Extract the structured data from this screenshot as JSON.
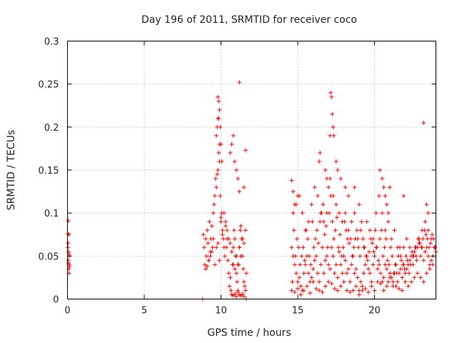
{
  "chart_data": {
    "type": "scatter",
    "title": "Day 196 of 2011, SRMTID for receiver coco",
    "xlabel": "GPS time / hours",
    "ylabel": "SRMTID / TECUs",
    "xlim": [
      0,
      24
    ],
    "ylim": [
      0,
      0.3
    ],
    "xticks": [
      0,
      5,
      10,
      15,
      20
    ],
    "xtick_labels": [
      "0",
      "5",
      "10",
      "15",
      "20"
    ],
    "yticks": [
      0,
      0.05,
      0.1,
      0.15,
      0.2,
      0.25,
      0.3
    ],
    "ytick_labels": [
      "0",
      "0.05",
      "0.1",
      "0.15",
      "0.2",
      "0.25",
      "0.3"
    ],
    "grid": true,
    "marker": "+",
    "color": "#ff0000",
    "series": [
      {
        "x": [
          0.02,
          0.04,
          0.06,
          0.08,
          0.1,
          0.12,
          0.05,
          0.09,
          0.03,
          0.11,
          0.07,
          0.13,
          0.06,
          0.1,
          8.85,
          8.9,
          8.95,
          9.0,
          9.05,
          9.1,
          9.15,
          9.2,
          9.25,
          9.3,
          9.35,
          9.4,
          9.45,
          9.5,
          9.55,
          9.6,
          9.65,
          9.7,
          9.75,
          9.8,
          9.85,
          9.9,
          9.95,
          10.0,
          10.05,
          10.1,
          10.15,
          10.2,
          10.25,
          10.3,
          10.35,
          10.4,
          10.45,
          10.5,
          10.55,
          10.6,
          10.65,
          10.7,
          10.75,
          10.8,
          10.85,
          10.9,
          10.95,
          11.0,
          11.05,
          11.1,
          11.15,
          11.2,
          11.25,
          11.3,
          11.35,
          11.4,
          11.45,
          11.5,
          11.55,
          11.6,
          11.65,
          9.7,
          9.75,
          9.8,
          9.85,
          9.9,
          9.95,
          10.0,
          10.05,
          9.8,
          9.85,
          9.9,
          10.6,
          10.7,
          10.8,
          10.9,
          11.0,
          11.1,
          11.2,
          11.6,
          11.2,
          11.5,
          9.0,
          9.2,
          9.4,
          9.6,
          9.8,
          10.0,
          10.2,
          10.4,
          10.6,
          10.8,
          11.0,
          11.2,
          11.4,
          11.6,
          9.1,
          9.3,
          9.5,
          9.7,
          9.9,
          10.1,
          10.3,
          10.5,
          10.7,
          10.9,
          11.1,
          11.3,
          11.5,
          10.7,
          10.8,
          10.9,
          11.0,
          11.1,
          11.2,
          11.3,
          11.4,
          11.5,
          8.8,
          11.65,
          14.6,
          14.7,
          14.8,
          14.9,
          15.0,
          15.1,
          15.2,
          15.3,
          15.4,
          15.5,
          15.6,
          15.7,
          15.8,
          15.9,
          16.0,
          16.1,
          16.2,
          16.3,
          16.4,
          16.5,
          16.6,
          16.7,
          16.8,
          16.9,
          17.0,
          17.1,
          17.2,
          17.3,
          17.4,
          17.5,
          17.6,
          17.7,
          17.8,
          17.9,
          18.0,
          18.1,
          18.2,
          18.3,
          18.4,
          18.5,
          18.6,
          18.7,
          18.8,
          18.9,
          19.0,
          19.1,
          19.2,
          19.3,
          19.4,
          19.5,
          19.6,
          19.7,
          19.8,
          19.9,
          20.0,
          20.1,
          20.2,
          20.3,
          20.4,
          20.5,
          20.6,
          20.7,
          20.8,
          20.9,
          21.0,
          21.1,
          21.2,
          21.3,
          21.4,
          21.5,
          21.6,
          21.7,
          21.8,
          21.9,
          22.0,
          22.1,
          22.2,
          22.3,
          22.4,
          22.5,
          22.6,
          22.7,
          22.8,
          22.9,
          23.0,
          23.1,
          23.2,
          23.3,
          23.4,
          23.5,
          23.6,
          23.7,
          23.8,
          23.9,
          24.0,
          14.65,
          14.75,
          14.85,
          14.95,
          15.05,
          15.15,
          15.25,
          15.35,
          15.45,
          15.55,
          15.65,
          15.75,
          15.85,
          15.95,
          16.05,
          16.15,
          16.25,
          16.35,
          16.45,
          16.55,
          16.65,
          16.75,
          16.85,
          16.95,
          17.05,
          17.15,
          17.25,
          17.35,
          17.45,
          17.55,
          17.65,
          17.75,
          17.85,
          17.95,
          18.05,
          18.15,
          18.25,
          18.35,
          18.45,
          18.55,
          18.65,
          18.75,
          18.85,
          18.95,
          19.05,
          19.15,
          19.25,
          19.35,
          19.45,
          19.55,
          19.65,
          19.75,
          19.85,
          19.95,
          20.05,
          20.15,
          20.25,
          20.35,
          20.45,
          20.55,
          20.65,
          20.75,
          20.85,
          20.95,
          21.05,
          21.15,
          21.25,
          21.35,
          21.45,
          21.55,
          21.65,
          21.75,
          21.85,
          21.95,
          22.05,
          22.15,
          22.25,
          22.35,
          22.45,
          22.55,
          22.65,
          22.75,
          22.85,
          22.95,
          23.05,
          23.15,
          23.25,
          23.35,
          23.45,
          23.55,
          23.65,
          23.75,
          23.85,
          23.95,
          14.7,
          14.9,
          15.1,
          15.3,
          15.5,
          15.7,
          15.9,
          16.1,
          16.3,
          16.5,
          16.7,
          16.9,
          17.1,
          17.3,
          17.5,
          17.7,
          17.9,
          18.1,
          18.3,
          18.5,
          18.7,
          18.9,
          19.1,
          19.3,
          19.5,
          19.7,
          19.9,
          20.1,
          20.3,
          20.5,
          20.7,
          20.9,
          21.1,
          21.3,
          21.5,
          21.7,
          21.9,
          22.1,
          22.3,
          22.5,
          22.7,
          22.9,
          23.1,
          23.3,
          23.5,
          23.7,
          23.9,
          16.4,
          16.45,
          16.8,
          16.9,
          17.0,
          17.1,
          17.15,
          17.2,
          17.25,
          17.3,
          17.35,
          17.5,
          17.6,
          17.8,
          18.1,
          18.3,
          18.7,
          19.0,
          20.35,
          20.5,
          20.6,
          20.7,
          20.8,
          20.9,
          21.0,
          21.9,
          23.2,
          23.4,
          23.5,
          14.6,
          14.7,
          14.8,
          15.0,
          14.6,
          14.8,
          15.0,
          15.2,
          15.4,
          15.6,
          15.8,
          16.0,
          16.2,
          16.4,
          16.6,
          16.8,
          17.0,
          17.2,
          17.4,
          17.6,
          17.8,
          18.0,
          18.2,
          18.4,
          18.6,
          18.8,
          19.0,
          19.2,
          19.4,
          19.6,
          19.8,
          20.0,
          20.2,
          20.4,
          20.6,
          20.8,
          21.0,
          21.2,
          21.4,
          21.6,
          21.8,
          22.0,
          22.2,
          22.4,
          22.6,
          22.8,
          23.0,
          23.2,
          23.4,
          23.6,
          23.8
        ],
        "y": [
          0.076,
          0.065,
          0.045,
          0.035,
          0.03,
          0.05,
          0.091,
          0.075,
          0.06,
          0.04,
          0.055,
          0.038,
          0.042,
          0.052,
          0.075,
          0.06,
          0.04,
          0.07,
          0.05,
          0.08,
          0.065,
          0.045,
          0.09,
          0.055,
          0.07,
          0.085,
          0.06,
          0.1,
          0.11,
          0.12,
          0.14,
          0.13,
          0.145,
          0.15,
          0.17,
          0.18,
          0.12,
          0.095,
          0.1,
          0.08,
          0.07,
          0.06,
          0.05,
          0.085,
          0.06,
          0.07,
          0.045,
          0.03,
          0.015,
          0.025,
          0.01,
          0.005,
          0.04,
          0.06,
          0.08,
          0.07,
          0.05,
          0.03,
          0.02,
          0.01,
          0.04,
          0.06,
          0.08,
          0.085,
          0.07,
          0.05,
          0.035,
          0.02,
          0.015,
          0.01,
          0.03,
          0.19,
          0.2,
          0.21,
          0.23,
          0.22,
          0.2,
          0.18,
          0.16,
          0.235,
          0.21,
          0.16,
          0.17,
          0.18,
          0.19,
          0.16,
          0.15,
          0.14,
          0.252,
          0.173,
          0.125,
          0.13,
          0.035,
          0.045,
          0.055,
          0.04,
          0.065,
          0.09,
          0.1,
          0.08,
          0.065,
          0.04,
          0.05,
          0.06,
          0.07,
          0.08,
          0.038,
          0.05,
          0.07,
          0.06,
          0.045,
          0.075,
          0.09,
          0.07,
          0.055,
          0.035,
          0.04,
          0.05,
          0.065,
          0.005,
          0.004,
          0.006,
          0.003,
          0.008,
          0.005,
          0.004,
          0.006,
          0.003,
          0.0,
          0.0,
          0.06,
          0.05,
          0.04,
          0.03,
          0.02,
          0.025,
          0.015,
          0.01,
          0.03,
          0.04,
          0.05,
          0.03,
          0.02,
          0.025,
          0.035,
          0.045,
          0.05,
          0.03,
          0.02,
          0.04,
          0.06,
          0.03,
          0.045,
          0.05,
          0.04,
          0.035,
          0.06,
          0.05,
          0.03,
          0.04,
          0.025,
          0.055,
          0.04,
          0.03,
          0.05,
          0.045,
          0.03,
          0.035,
          0.02,
          0.04,
          0.05,
          0.03,
          0.035,
          0.025,
          0.01,
          0.02,
          0.015,
          0.03,
          0.04,
          0.05,
          0.035,
          0.03,
          0.02,
          0.04,
          0.05,
          0.06,
          0.035,
          0.04,
          0.03,
          0.02,
          0.025,
          0.04,
          0.035,
          0.02,
          0.03,
          0.025,
          0.015,
          0.03,
          0.04,
          0.02,
          0.03,
          0.035,
          0.025,
          0.04,
          0.03,
          0.035,
          0.04,
          0.045,
          0.05,
          0.04,
          0.055,
          0.05,
          0.06,
          0.065,
          0.05,
          0.06,
          0.045,
          0.055,
          0.06,
          0.05,
          0.04,
          0.045,
          0.05,
          0.06,
          0.055,
          0.02,
          0.08,
          0.05,
          0.07,
          0.06,
          0.04,
          0.05,
          0.06,
          0.045,
          0.08,
          0.07,
          0.05,
          0.04,
          0.09,
          0.06,
          0.07,
          0.08,
          0.065,
          0.09,
          0.1,
          0.11,
          0.075,
          0.085,
          0.06,
          0.1,
          0.12,
          0.09,
          0.07,
          0.08,
          0.095,
          0.06,
          0.075,
          0.05,
          0.06,
          0.09,
          0.08,
          0.07,
          0.065,
          0.07,
          0.05,
          0.06,
          0.07,
          0.08,
          0.06,
          0.05,
          0.09,
          0.07,
          0.06,
          0.05,
          0.045,
          0.055,
          0.07,
          0.065,
          0.055,
          0.08,
          0.06,
          0.045,
          0.07,
          0.08,
          0.05,
          0.06,
          0.07,
          0.045,
          0.04,
          0.06,
          0.05,
          0.03,
          0.04,
          0.03,
          0.05,
          0.06,
          0.045,
          0.04,
          0.035,
          0.05,
          0.045,
          0.03,
          0.04,
          0.055,
          0.05,
          0.06,
          0.045,
          0.07,
          0.065,
          0.06,
          0.07,
          0.08,
          0.075,
          0.07,
          0.06,
          0.065,
          0.075,
          0.07,
          0.06,
          0.1,
          0.11,
          0.12,
          0.1,
          0.08,
          0.09,
          0.11,
          0.13,
          0.12,
          0.1,
          0.09,
          0.1,
          0.14,
          0.12,
          0.11,
          0.1,
          0.09,
          0.1,
          0.08,
          0.09,
          0.1,
          0.07,
          0.08,
          0.06,
          0.09,
          0.08,
          0.07,
          0.1,
          0.12,
          0.1,
          0.08,
          0.09,
          0.07,
          0.08,
          0.06,
          0.05,
          0.06,
          0.07,
          0.06,
          0.05,
          0.06,
          0.07,
          0.08,
          0.09,
          0.08,
          0.07,
          0.06,
          0.16,
          0.17,
          0.15,
          0.14,
          0.13,
          0.19,
          0.24,
          0.235,
          0.215,
          0.2,
          0.19,
          0.16,
          0.15,
          0.14,
          0.13,
          0.12,
          0.13,
          0.11,
          0.15,
          0.14,
          0.13,
          0.12,
          0.11,
          0.1,
          0.13,
          0.12,
          0.205,
          0.11,
          0.1,
          0.138,
          0.125,
          0.11,
          0.12,
          0.01,
          0.008,
          0.012,
          0.005,
          0.01,
          0.015,
          0.007,
          0.02,
          0.012,
          0.01,
          0.008,
          0.015,
          0.02,
          0.018,
          0.012,
          0.01,
          0.015,
          0.02,
          0.01,
          0.008,
          0.01,
          0.015,
          0.005,
          0.01,
          0.012,
          0.008,
          0.015,
          0.01,
          0.02,
          0.018,
          0.01,
          0.015,
          0.025,
          0.02,
          0.015,
          0.012,
          0.01,
          0.02,
          0.015,
          0.02,
          0.025,
          0.03,
          0.025,
          0.02,
          0.03,
          0.035,
          0.04
        ]
      }
    ]
  }
}
